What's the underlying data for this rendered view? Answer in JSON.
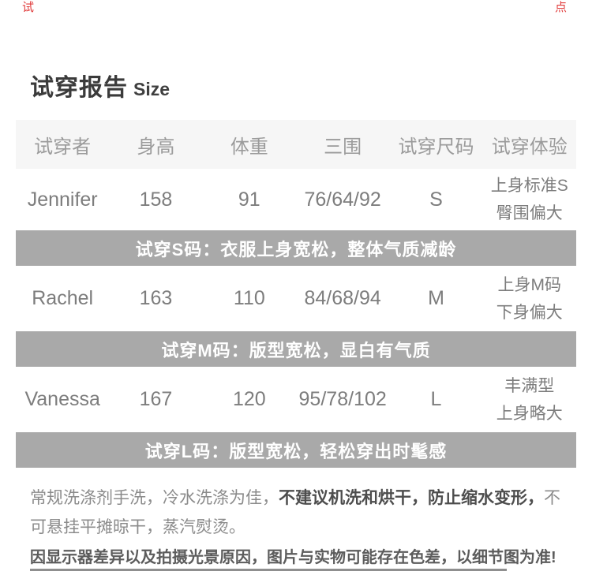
{
  "page": {
    "corner_left": "试",
    "corner_right": "点"
  },
  "title": {
    "zh": "试穿报告",
    "en": "Size"
  },
  "table": {
    "headers": [
      "试穿者",
      "身高",
      "体重",
      "三围",
      "试穿尺码",
      "试穿体验"
    ],
    "rows": [
      {
        "tester": "Jennifer",
        "height": "158",
        "weight": "91",
        "measurements": "76/64/92",
        "size": "S",
        "experience": [
          "上身标准S",
          "臀围偏大"
        ],
        "review": "试穿S码：衣服上身宽松，整体气质减龄"
      },
      {
        "tester": "Rachel",
        "height": "163",
        "weight": "110",
        "measurements": "84/68/94",
        "size": "M",
        "experience": [
          "上身M码",
          "下身偏大"
        ],
        "review": "试穿M码：版型宽松，显白有气质"
      },
      {
        "tester": "Vanessa",
        "height": "167",
        "weight": "120",
        "measurements": "95/78/102",
        "size": "L",
        "experience": [
          "丰满型",
          "上身略大"
        ],
        "review": "试穿L码：版型宽松，轻松穿出时髦感"
      }
    ]
  },
  "care": {
    "part1": "常规洗涤剂手洗，冷水洗涤为佳，",
    "part2_bold": "不建议机洗和烘干，防止缩水变形，",
    "part3": "不可悬挂平摊晾干，蒸汽熨烫。"
  },
  "disclaimer": "因显示器差异以及拍摄光景原因，图片与实物可能存在色差，以细节图为准!",
  "colors": {
    "banner_bg": "#a9a9a9",
    "header_bg": "#f6f6f6",
    "corner_red": "#e03a3a",
    "body_text": "#7d7d7d"
  }
}
